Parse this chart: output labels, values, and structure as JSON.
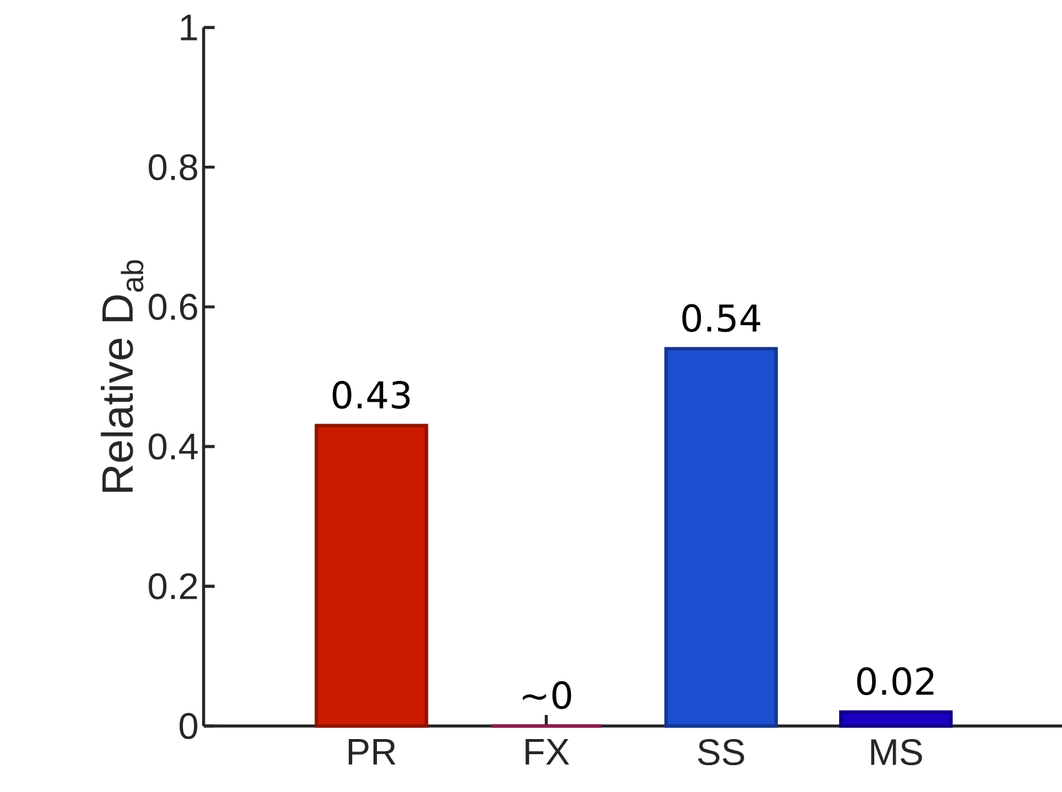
{
  "chart_data": {
    "type": "bar",
    "ylabel": "Relative D$_{ab}$",
    "categories": [
      "PR",
      "FX",
      "SS",
      "MS"
    ],
    "values": [
      0.43,
      0,
      0.54,
      0.02
    ],
    "colors": [
      "#cc1a00",
      "#c8256e",
      "#1c4fcf",
      "#1a00c0"
    ],
    "value_labels": [
      "0.43",
      "~0",
      "0.54",
      "0.02"
    ],
    "ylim": [
      0,
      1
    ],
    "yticks": [
      0,
      0.2,
      0.4,
      0.6,
      0.8,
      1
    ]
  }
}
